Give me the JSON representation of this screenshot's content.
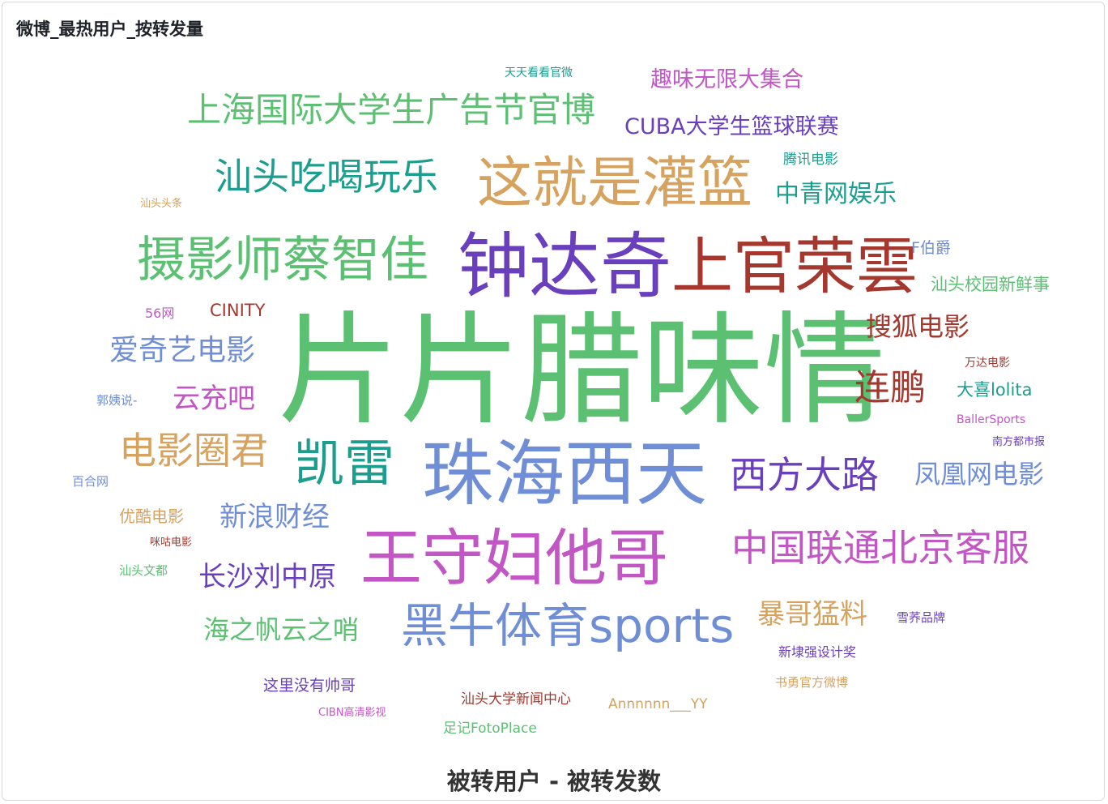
{
  "panel": {
    "title": "微博_最热用户_按转发量",
    "caption": "被转用户 - 被转发数"
  },
  "chart_data": {
    "type": "wordcloud",
    "title": "微博_最热用户_按转发量",
    "xlabel": "被转用户 - 被转发数",
    "words": [
      {
        "text": "片片腊味情",
        "weight": 100,
        "color": "#5cc073"
      },
      {
        "text": "钟达奇",
        "weight": 58,
        "color": "#6a3fbd"
      },
      {
        "text": "珠海西天",
        "weight": 58,
        "color": "#6f8ed6"
      },
      {
        "text": "上官荣雲",
        "weight": 52,
        "color": "#a5382e"
      },
      {
        "text": "这就是灌篮",
        "weight": 48,
        "color": "#d6a25f"
      },
      {
        "text": "王守妇他哥",
        "weight": 52,
        "color": "#c256c4"
      },
      {
        "text": "摄影师蔡智佳",
        "weight": 44,
        "color": "#5cc073"
      },
      {
        "text": "黑牛体育sports",
        "weight": 44,
        "color": "#6f8ed6"
      },
      {
        "text": "凯雷",
        "weight": 44,
        "color": "#1b9e8e"
      },
      {
        "text": "汕头吃喝玩乐",
        "weight": 33,
        "color": "#1b9e8e"
      },
      {
        "text": "电影圈君",
        "weight": 33,
        "color": "#d6a25f"
      },
      {
        "text": "上海国际大学生广告节官博",
        "weight": 30,
        "color": "#5cc073"
      },
      {
        "text": "中国联通北京客服",
        "weight": 33,
        "color": "#c256c4"
      },
      {
        "text": "西方大路",
        "weight": 33,
        "color": "#6a3fbd"
      },
      {
        "text": "连鹏",
        "weight": 33,
        "color": "#a5382e"
      },
      {
        "text": "爱奇艺电影",
        "weight": 27,
        "color": "#6f8ed6"
      },
      {
        "text": "搜狐电影",
        "weight": 25,
        "color": "#a5382e"
      },
      {
        "text": "凤凰网电影",
        "weight": 25,
        "color": "#6f8ed6"
      },
      {
        "text": "新浪财经",
        "weight": 25,
        "color": "#6f8ed6"
      },
      {
        "text": "长沙刘中原",
        "weight": 25,
        "color": "#6a3fbd"
      },
      {
        "text": "海之帆云之哨",
        "weight": 25,
        "color": "#5cc073"
      },
      {
        "text": "暴哥猛料",
        "weight": 25,
        "color": "#d6a25f"
      },
      {
        "text": "云充吧",
        "weight": 25,
        "color": "#c256c4"
      },
      {
        "text": "中青网娱乐",
        "weight": 22,
        "color": "#1b9e8e"
      },
      {
        "text": "CUBA大学生篮球联赛",
        "weight": 21,
        "color": "#6a3fbd"
      },
      {
        "text": "趣味无限大集合",
        "weight": 21,
        "color": "#c256c4"
      },
      {
        "text": "汕头校园新鲜事",
        "weight": 16,
        "color": "#5cc073"
      },
      {
        "text": "大喜lolita",
        "weight": 16,
        "color": "#1b9e8e"
      },
      {
        "text": "F伯爵",
        "weight": 14,
        "color": "#6f8ed6"
      },
      {
        "text": "CINITY",
        "weight": 14,
        "color": "#a5382e"
      },
      {
        "text": "腾讯电影",
        "weight": 13,
        "color": "#1b9e8e"
      },
      {
        "text": "优酷电影",
        "weight": 14,
        "color": "#d6a25f"
      },
      {
        "text": "这里没有帅哥",
        "weight": 14,
        "color": "#6a3fbd"
      },
      {
        "text": "汕头大学新闻中心",
        "weight": 13,
        "color": "#a5382e"
      },
      {
        "text": "Annnnnn___YY",
        "weight": 13,
        "color": "#d6a25f"
      },
      {
        "text": "足记FotoPlace",
        "weight": 13,
        "color": "#5cc073"
      },
      {
        "text": "新埭强设计奖",
        "weight": 13,
        "color": "#6a3fbd"
      },
      {
        "text": "书勇官方微博",
        "weight": 12,
        "color": "#d6a25f"
      },
      {
        "text": "雪荞品牌",
        "weight": 12,
        "color": "#6a3fbd"
      },
      {
        "text": "天天看看官微",
        "weight": 11,
        "color": "#1b9e8e"
      },
      {
        "text": "56网",
        "weight": 11,
        "color": "#c256c4"
      },
      {
        "text": "郭姨说-",
        "weight": 11,
        "color": "#6f8ed6"
      },
      {
        "text": "百合网",
        "weight": 11,
        "color": "#6f8ed6"
      },
      {
        "text": "汕头头条",
        "weight": 10,
        "color": "#d6a25f"
      },
      {
        "text": "咪咕电影",
        "weight": 10,
        "color": "#a5382e"
      },
      {
        "text": "汕头文都",
        "weight": 10,
        "color": "#5cc073"
      },
      {
        "text": "万达电影",
        "weight": 10,
        "color": "#a5382e"
      },
      {
        "text": "BallerSports",
        "weight": 10,
        "color": "#c256c4"
      },
      {
        "text": "南方都市报",
        "weight": 10,
        "color": "#6a3fbd"
      },
      {
        "text": "CIBN高清影视",
        "weight": 9,
        "color": "#c256c4"
      }
    ]
  }
}
